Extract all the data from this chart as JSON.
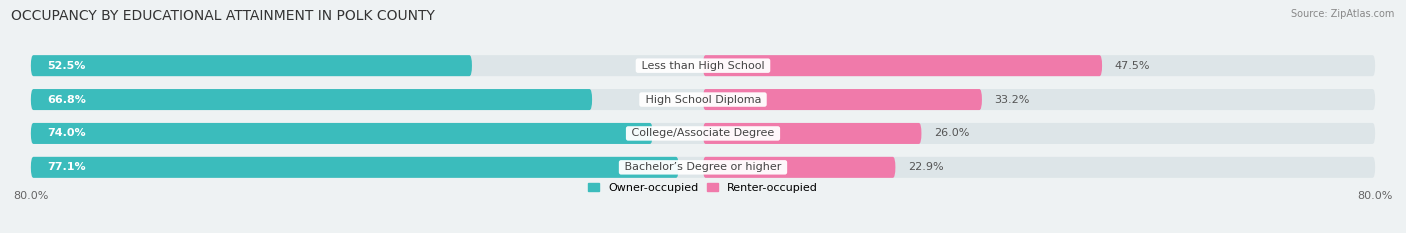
{
  "title": "OCCUPANCY BY EDUCATIONAL ATTAINMENT IN POLK COUNTY",
  "source": "Source: ZipAtlas.com",
  "categories": [
    "Less than High School",
    "High School Diploma",
    "College/Associate Degree",
    "Bachelor’s Degree or higher"
  ],
  "owner_pct": [
    52.5,
    66.8,
    74.0,
    77.1
  ],
  "renter_pct": [
    47.5,
    33.2,
    26.0,
    22.9
  ],
  "owner_color": "#3bbcbc",
  "renter_color": "#f07aaa",
  "bg_color": "#eef2f3",
  "bar_bg_color": "#dde5e8",
  "title_fontsize": 10,
  "owner_label_fontsize": 8,
  "renter_label_fontsize": 8,
  "cat_label_fontsize": 8,
  "legend_fontsize": 8,
  "source_fontsize": 7,
  "x_left_label": "80.0%",
  "x_right_label": "80.0%",
  "bar_height": 0.62,
  "total_width": 80.0,
  "row_order": [
    0,
    1,
    2,
    3
  ]
}
